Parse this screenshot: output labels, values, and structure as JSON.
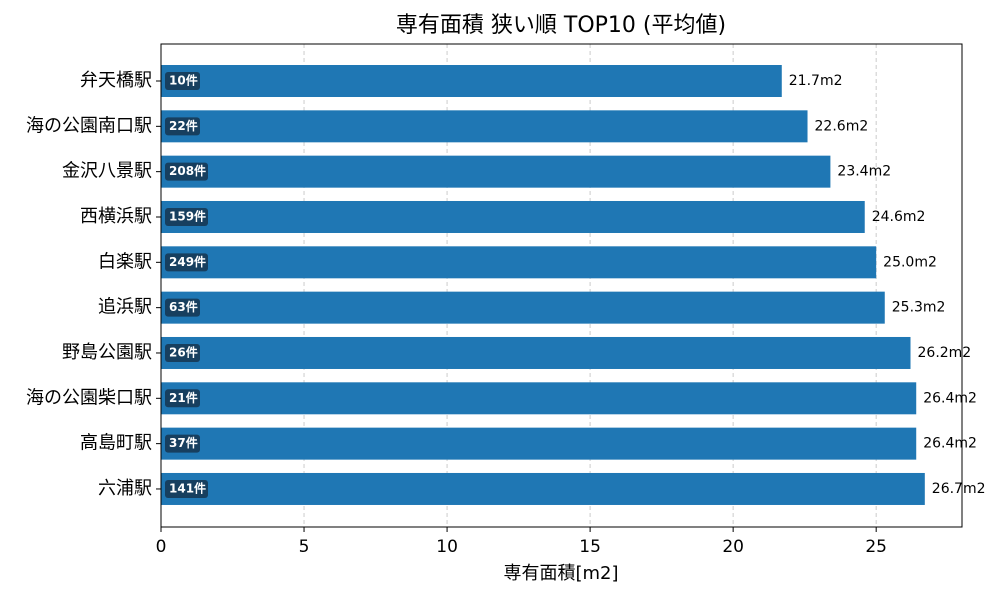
{
  "chart_data": {
    "type": "barh",
    "title": "専有面積 狭い順 TOP10 (平均値)",
    "x_label": "専有面積[m2]",
    "categories": [
      "弁天橋駅",
      "海の公園南口駅",
      "金沢八景駅",
      "西横浜駅",
      "白楽駅",
      "追浜駅",
      "野島公園駅",
      "海の公園柴口駅",
      "高島町駅",
      "六浦駅"
    ],
    "values": [
      21.7,
      22.6,
      23.4,
      24.6,
      25.0,
      25.3,
      26.2,
      26.4,
      26.4,
      26.7
    ],
    "value_labels": [
      "21.7m2",
      "22.6m2",
      "23.4m2",
      "24.6m2",
      "25.0m2",
      "25.3m2",
      "26.2m2",
      "26.4m2",
      "26.4m2",
      "26.7m2"
    ],
    "count_labels": [
      "10件",
      "22件",
      "208件",
      "159件",
      "249件",
      "63件",
      "26件",
      "21件",
      "37件",
      "141件"
    ],
    "color": "#1f77b4",
    "count_box_color": "#173f5f",
    "xlim": [
      0,
      28
    ],
    "xticks": [
      0,
      5,
      10,
      15,
      20,
      25
    ],
    "grid": true
  }
}
